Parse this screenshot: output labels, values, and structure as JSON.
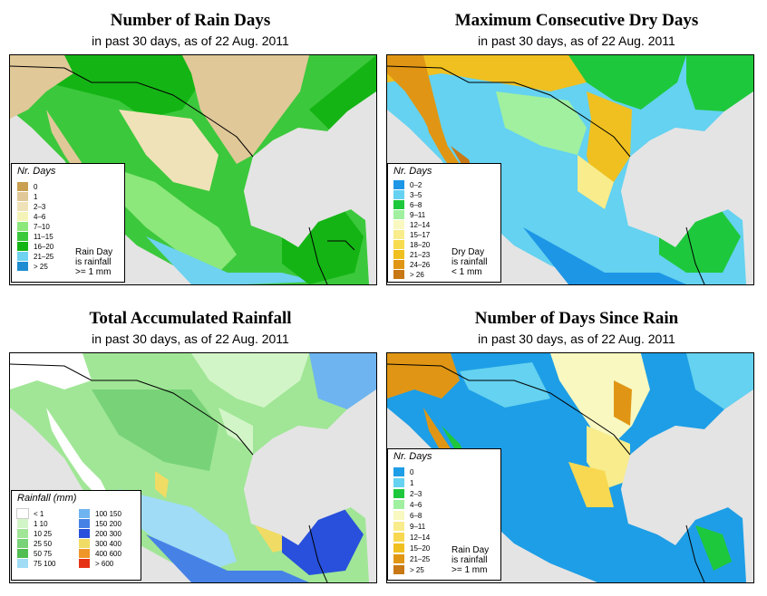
{
  "panels": [
    {
      "id": "rain_days",
      "title": "Number of Rain Days",
      "subtitle": "in past 30 days, as of  22 Aug. 2011",
      "legend": {
        "heading": "Nr. Days",
        "items": [
          {
            "label": "0",
            "color": "#c8a050"
          },
          {
            "label": "1",
            "color": "#e0c898"
          },
          {
            "label": "2–3",
            "color": "#f0e2b8"
          },
          {
            "label": "4–6",
            "color": "#f4f4b8"
          },
          {
            "label": "7–10",
            "color": "#8ce87a"
          },
          {
            "label": "11–15",
            "color": "#3cc83c"
          },
          {
            "label": "16–20",
            "color": "#14b414"
          },
          {
            "label": "21–25",
            "color": "#6ed2f0"
          },
          {
            "label": "> 25",
            "color": "#1e8cd2"
          }
        ],
        "note": "Rain Day\nis rainfall\n>= 1 mm"
      }
    },
    {
      "id": "dry_days",
      "title": "Maximum Consecutive Dry Days",
      "subtitle": "in past 30 days, as of  22 Aug. 2011",
      "legend": {
        "heading": "Nr. Days",
        "items": [
          {
            "label": "0–2",
            "color": "#1e96e6"
          },
          {
            "label": "3–5",
            "color": "#64d2f0"
          },
          {
            "label": "6–8",
            "color": "#1ec83c"
          },
          {
            "label": "9–11",
            "color": "#a0f0a0"
          },
          {
            "label": "12–14",
            "color": "#f8f8c0"
          },
          {
            "label": "15–17",
            "color": "#f8ec8c"
          },
          {
            "label": "18–20",
            "color": "#f8dc50"
          },
          {
            "label": "21–23",
            "color": "#f0c020"
          },
          {
            "label": "24–26",
            "color": "#e09614"
          },
          {
            "label": "> 26",
            "color": "#c87814"
          }
        ],
        "note": "Dry Day\nis rainfall\n< 1 mm"
      }
    },
    {
      "id": "rainfall",
      "title": "Total Accumulated Rainfall",
      "subtitle": "in past 30 days, as of  22 Aug. 2011",
      "legend": {
        "heading": "Rainfall (mm)",
        "items": [
          {
            "label": "< 1",
            "color": "#ffffff"
          },
          {
            "label": "1  10",
            "color": "#d2f5c8"
          },
          {
            "label": "10  25",
            "color": "#a0e696"
          },
          {
            "label": "25  50",
            "color": "#78d278"
          },
          {
            "label": "50  75",
            "color": "#50be50"
          },
          {
            "label": "75  100",
            "color": "#a0dcf5"
          },
          {
            "label": "100  150",
            "color": "#6eb4f0"
          },
          {
            "label": "150  200",
            "color": "#4682e6"
          },
          {
            "label": "200  300",
            "color": "#2850dc"
          },
          {
            "label": "300  400",
            "color": "#f0dc64"
          },
          {
            "label": "400  600",
            "color": "#f09628"
          },
          {
            "label": "> 600",
            "color": "#e63214"
          }
        ]
      }
    },
    {
      "id": "days_since",
      "title": "Number of Days Since Rain",
      "subtitle": "in past 30 days, as of  22 Aug. 2011",
      "legend": {
        "heading": "Nr. Days",
        "items": [
          {
            "label": "0",
            "color": "#1e9ee6"
          },
          {
            "label": "1",
            "color": "#64d2f0"
          },
          {
            "label": "2–3",
            "color": "#1ec83c"
          },
          {
            "label": "4–6",
            "color": "#a0f0a0"
          },
          {
            "label": "6–8",
            "color": "#f8f8c0"
          },
          {
            "label": "9–11",
            "color": "#f8ec8c"
          },
          {
            "label": "12–14",
            "color": "#f8d850"
          },
          {
            "label": "15–20",
            "color": "#f0c020"
          },
          {
            "label": "21–25",
            "color": "#e09614"
          },
          {
            "label": "> 25",
            "color": "#c87814"
          }
        ],
        "note": "Rain Day\nis rainfall\n>= 1 mm"
      }
    }
  ]
}
